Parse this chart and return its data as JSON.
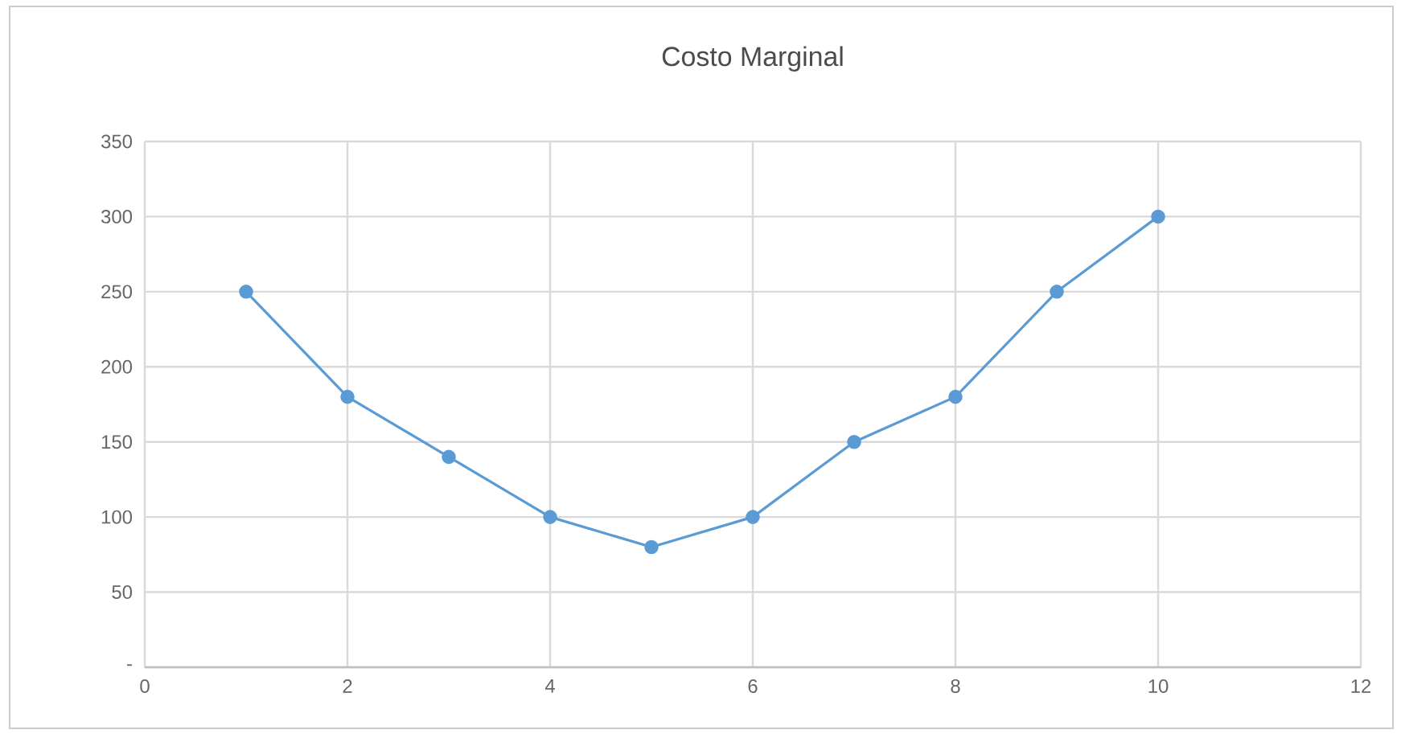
{
  "chart_data": {
    "type": "line",
    "title": "Costo Marginal",
    "x": [
      1,
      2,
      3,
      4,
      5,
      6,
      7,
      8,
      9,
      10
    ],
    "series": [
      {
        "color": "#5b9bd5",
        "values": [
          250,
          180,
          140,
          100,
          80,
          100,
          150,
          180,
          250,
          300
        ]
      }
    ],
    "xlim": [
      0,
      12
    ],
    "xticks": [
      0,
      2,
      4,
      6,
      8,
      10,
      12
    ],
    "ylim": [
      0,
      350
    ],
    "yticks": [
      {
        "value": 0,
        "label": "-"
      },
      50,
      100,
      150,
      200,
      250,
      300,
      350
    ],
    "grid": true,
    "marker": "circle",
    "line_style": "solid"
  }
}
